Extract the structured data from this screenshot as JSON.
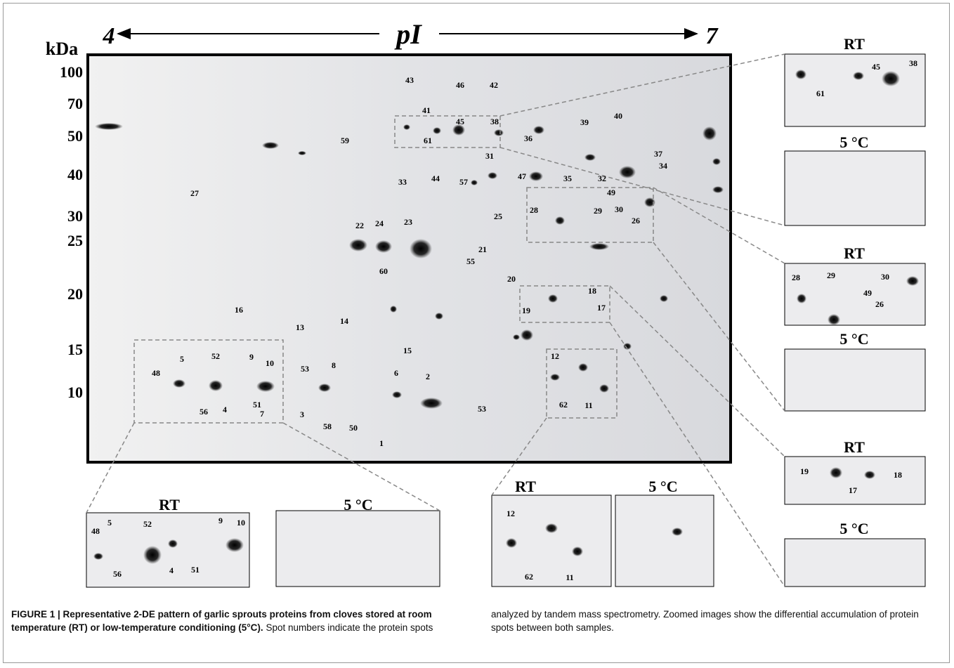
{
  "figure": {
    "pi_axis": {
      "left": "4",
      "label": "pI",
      "right": "7"
    },
    "mass_axis": {
      "unit": "kDa",
      "ticks": [
        "100",
        "70",
        "50",
        "40",
        "30",
        "25",
        "20",
        "15",
        "10"
      ]
    },
    "gel_spots": [
      "43",
      "46",
      "42",
      "41",
      "45",
      "38",
      "40",
      "39",
      "61",
      "59",
      "36",
      "37",
      "34",
      "31",
      "33",
      "44",
      "47",
      "35",
      "32",
      "57",
      "49",
      "27",
      "28",
      "29",
      "30",
      "26",
      "25",
      "22",
      "24",
      "23",
      "21",
      "55",
      "60",
      "20",
      "18",
      "19",
      "17",
      "16",
      "13",
      "14",
      "15",
      "12",
      "52",
      "5",
      "9",
      "10",
      "48",
      "53",
      "8",
      "6",
      "2",
      "56",
      "4",
      "51",
      "7",
      "3",
      "58",
      "50",
      "53",
      "62",
      "11",
      "1"
    ],
    "zooms": [
      {
        "title": "RT",
        "spots": [
          "45",
          "38",
          "61"
        ]
      },
      {
        "title": "5 °C",
        "spots": []
      },
      {
        "title": "RT",
        "spots": [
          "28",
          "29",
          "49",
          "30",
          "26"
        ]
      },
      {
        "title": "5 °C",
        "spots": []
      },
      {
        "title": "RT",
        "spots": [
          "19",
          "18",
          "17"
        ]
      },
      {
        "title": "5 °C",
        "spots": []
      },
      {
        "title": "RT",
        "spots": [
          "48",
          "5",
          "52",
          "9",
          "10",
          "56",
          "4",
          "51"
        ]
      },
      {
        "title": "5 °C",
        "spots": []
      },
      {
        "title": "RT",
        "spots": [
          "12",
          "62",
          "11"
        ]
      },
      {
        "title": "5 °C",
        "spots": []
      }
    ],
    "caption": {
      "heading": "FIGURE 1 | Representative 2-DE pattern of garlic sprouts proteins from cloves stored at room temperature (RT) or low-temperature conditioning (5°C).",
      "text": "Spot numbers indicate the protein spots analyzed by tandem mass spectrometry. Zoomed images show the differential accumulation of protein spots between both samples."
    }
  }
}
